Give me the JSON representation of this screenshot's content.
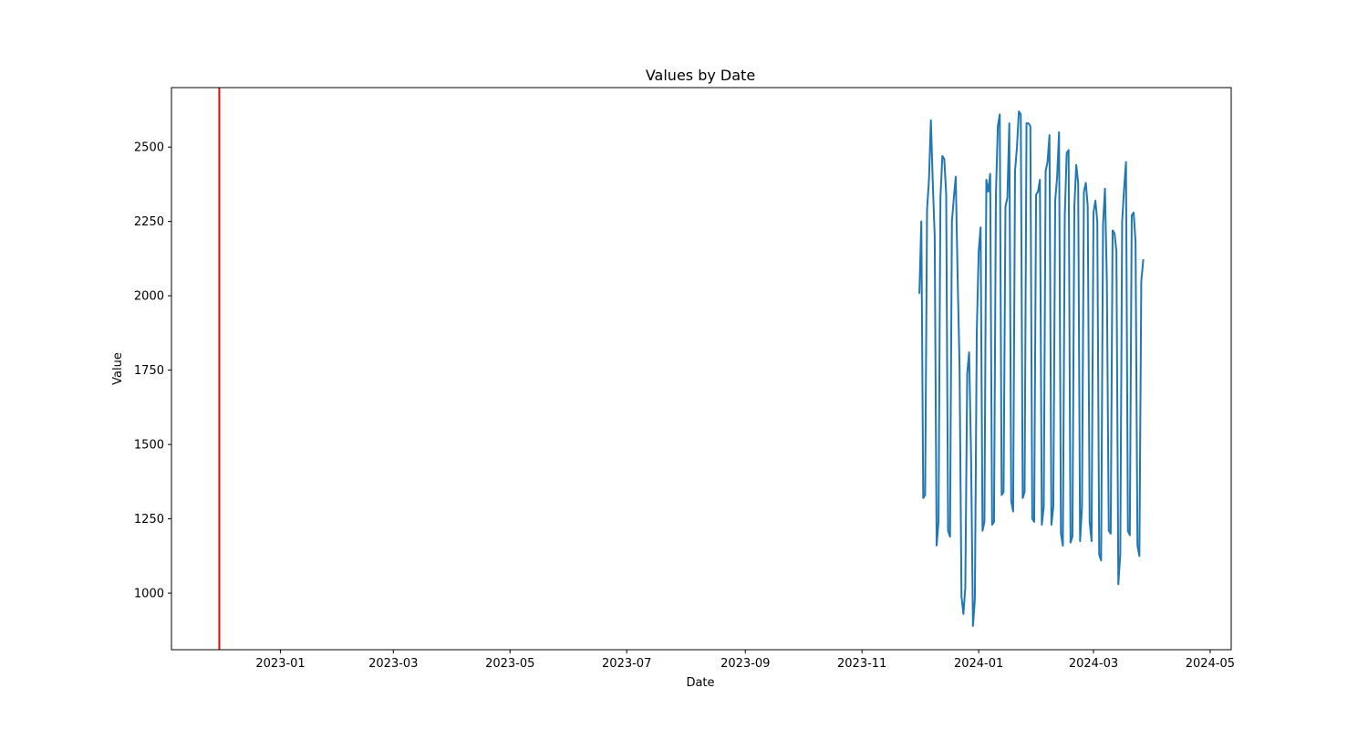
{
  "chart_data": {
    "type": "line",
    "title": "Values by Date",
    "xlabel": "Date",
    "ylabel": "Value",
    "xlim": [
      "2022-11-05",
      "2024-05-12"
    ],
    "ylim": [
      810,
      2700
    ],
    "x_ticks": [
      {
        "date": "2023-01-01",
        "label": "2023-01"
      },
      {
        "date": "2023-03-01",
        "label": "2023-03"
      },
      {
        "date": "2023-05-01",
        "label": "2023-05"
      },
      {
        "date": "2023-07-01",
        "label": "2023-07"
      },
      {
        "date": "2023-09-01",
        "label": "2023-09"
      },
      {
        "date": "2023-11-01",
        "label": "2023-11"
      },
      {
        "date": "2024-01-01",
        "label": "2024-01"
      },
      {
        "date": "2024-03-01",
        "label": "2024-03"
      },
      {
        "date": "2024-05-01",
        "label": "2024-05"
      }
    ],
    "y_ticks": [
      {
        "value": 1000,
        "label": "1000"
      },
      {
        "value": 1250,
        "label": "1250"
      },
      {
        "value": 1500,
        "label": "1500"
      },
      {
        "value": 1750,
        "label": "1750"
      },
      {
        "value": 2000,
        "label": "2000"
      },
      {
        "value": 2250,
        "label": "2250"
      },
      {
        "value": 2500,
        "label": "2500"
      }
    ],
    "vline": {
      "date": "2022-11-30",
      "color": "#ff0000"
    },
    "series": [
      {
        "name": "Value",
        "color": "#1f77b4",
        "start_date": "2023-12-01",
        "step_days": 1,
        "values": [
          2010,
          2250,
          1320,
          1330,
          2290,
          2390,
          2590,
          2380,
          2200,
          1160,
          1240,
          2330,
          2470,
          2460,
          2340,
          1210,
          1190,
          2250,
          2330,
          2400,
          2060,
          1760,
          990,
          930,
          1020,
          1740,
          1810,
          1470,
          890,
          980,
          1880,
          2150,
          2230,
          1210,
          1240,
          2390,
          2350,
          2410,
          1230,
          1240,
          2340,
          2570,
          2610,
          1330,
          1340,
          2300,
          2330,
          2580,
          1310,
          1275,
          2420,
          2500,
          2620,
          2610,
          1320,
          1340,
          2580,
          2580,
          2570,
          1250,
          1240,
          2340,
          2350,
          2390,
          1230,
          1290,
          2420,
          2450,
          2540,
          1230,
          1290,
          2320,
          2400,
          2550,
          1200,
          1160,
          2270,
          2480,
          2490,
          1170,
          1190,
          2300,
          2440,
          2380,
          1175,
          1290,
          2350,
          2380,
          2300,
          1240,
          1175,
          2280,
          2320,
          2250,
          1130,
          1110,
          2240,
          2360,
          2050,
          1210,
          1200,
          2220,
          2210,
          2150,
          1030,
          1130,
          2250,
          2360,
          2450,
          1210,
          1195,
          2270,
          2280,
          2180,
          1160,
          1125,
          2050,
          2120
        ]
      }
    ]
  }
}
